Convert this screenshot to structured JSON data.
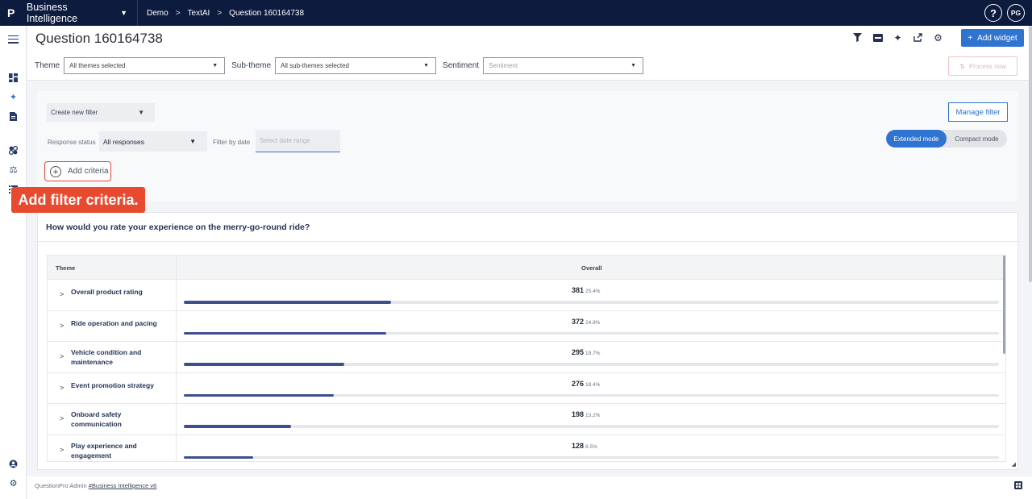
{
  "topbar": {
    "logo": "P",
    "app_name": "Business Intelligence",
    "breadcrumbs": [
      "Demo",
      "TextAI",
      "Question 160164738"
    ],
    "help": "?",
    "avatar_initials": "PG"
  },
  "header": {
    "title": "Question 160164738",
    "add_widget": "Add widget",
    "process_now": "Process now",
    "icons": [
      "filter-icon",
      "csv-icon",
      "sparkle-icon",
      "share-icon",
      "gear-icon"
    ]
  },
  "filters": {
    "theme_label": "Theme",
    "theme_value": "All themes selected",
    "subtheme_label": "Sub-theme",
    "subtheme_value": "All sub-themes selected",
    "sentiment_label": "Sentiment",
    "sentiment_placeholder": "Sentiment"
  },
  "panel": {
    "create_filter": "Create new filter",
    "manage_filter": "Manage filter",
    "response_status_label": "Response status",
    "response_status_value": "All responses",
    "filter_by_date_label": "Filter by date",
    "date_placeholder": "Select date range",
    "mode_extended": "Extended mode",
    "mode_compact": "Compact mode",
    "add_criteria": "Add criteria"
  },
  "callout": "Add filter criteria.",
  "widget": {
    "title": "How would you rate your experience on the merry-go-round ride?",
    "col_theme": "Theme",
    "col_overall": "Overall",
    "rows": [
      {
        "label": "Overall product rating",
        "count": "381",
        "pct": "25.4%",
        "fraction": 0.254
      },
      {
        "label": "Ride operation and pacing",
        "count": "372",
        "pct": "24.8%",
        "fraction": 0.248
      },
      {
        "label": "Vehicle condition and maintenance",
        "count": "295",
        "pct": "19.7%",
        "fraction": 0.197
      },
      {
        "label": "Event promotion strategy",
        "count": "276",
        "pct": "18.4%",
        "fraction": 0.184
      },
      {
        "label": "Onboard safety communication",
        "count": "198",
        "pct": "13.2%",
        "fraction": 0.132
      },
      {
        "label": "Play experience and engagement",
        "count": "128",
        "pct": "8.5%",
        "fraction": 0.085
      }
    ]
  },
  "footer": {
    "text": "QuestionPro Admin",
    "link": "#Business Intelligence v6"
  },
  "colors": {
    "topbar": "#0d1b3e",
    "accent": "#2f74d0",
    "bar": "#3f4f8e",
    "callout": "#e74a2f"
  }
}
